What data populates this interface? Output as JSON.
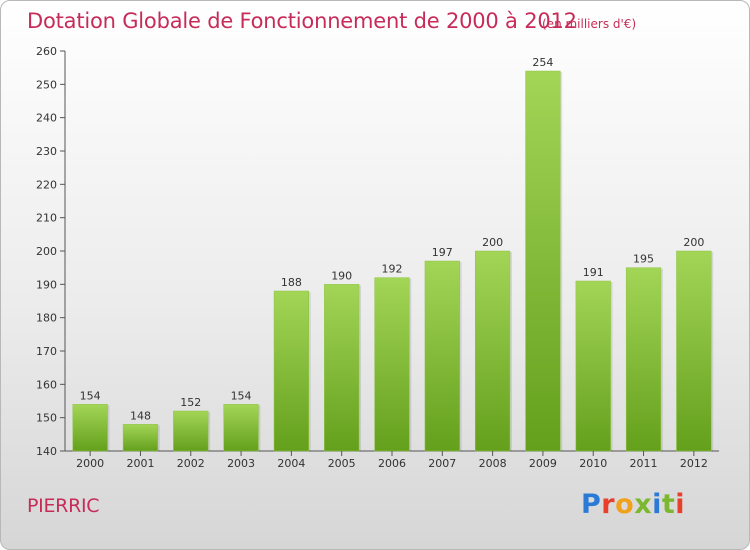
{
  "header": {
    "title": "Dotation Globale de Fonctionnement de 2000 à 2012",
    "subtitle": "(en milliers d'€)"
  },
  "footer": {
    "commune": "PIERRIC",
    "logo": "Proxiti",
    "logo_colors": [
      "#2b7bd6",
      "#e8402a",
      "#f0a21c",
      "#7cb82f",
      "#2b7bd6",
      "#7cb82f",
      "#e8402a"
    ]
  },
  "chart_data": {
    "type": "bar",
    "title": "Dotation Globale de Fonctionnement de 2000 à 2012",
    "subtitle": "(en milliers d'€)",
    "xlabel": "",
    "ylabel": "",
    "categories": [
      "2000",
      "2001",
      "2002",
      "2003",
      "2004",
      "2005",
      "2006",
      "2007",
      "2008",
      "2009",
      "2010",
      "2011",
      "2012"
    ],
    "values": [
      154,
      148,
      152,
      154,
      188,
      190,
      192,
      197,
      200,
      254,
      191,
      195,
      200
    ],
    "ylim": [
      140,
      260
    ],
    "yticks": [
      140,
      150,
      160,
      170,
      180,
      190,
      200,
      210,
      220,
      230,
      240,
      250,
      260
    ],
    "grid": false,
    "legend": "none",
    "colors": {
      "bar_top": "#a3d557",
      "bar_bottom": "#64a01c",
      "title": "#c72c59",
      "axis": "#555555"
    }
  }
}
